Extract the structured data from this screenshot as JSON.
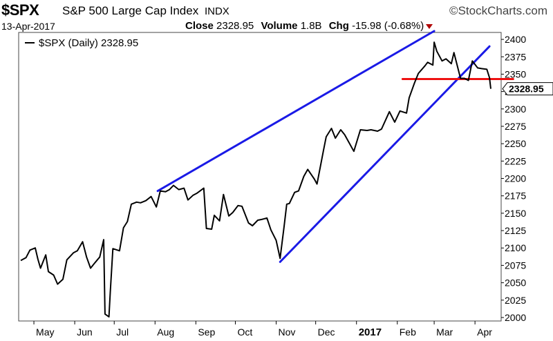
{
  "header": {
    "symbol": "$SPX",
    "name": "S&P 500 Large Cap Index",
    "exchange": "INDX",
    "brand": "©StockCharts.com",
    "date": "13-Apr-2017",
    "close_label": "Close",
    "close_value": "2328.95",
    "volume_label": "Volume",
    "volume_value": "1.8B",
    "chg_label": "Chg",
    "chg_value": "-15.98 (-0.68%)"
  },
  "chart_data": {
    "type": "line",
    "legend": "$SPX (Daily) 2328.95",
    "legend_placement": "top-left",
    "last_value_label": "2328.95",
    "last_value": 2328.95,
    "ylim": [
      1995,
      2410
    ],
    "yticks": [
      2000,
      2025,
      2050,
      2075,
      2100,
      2125,
      2150,
      2175,
      2200,
      2225,
      2250,
      2275,
      2300,
      2325,
      2350,
      2375,
      2400
    ],
    "y_axis_side": "right",
    "x_start": "2016-04-21",
    "x_end": "2017-04-13",
    "months": [
      {
        "label": "May",
        "date": "2016-05-01"
      },
      {
        "label": "Jun",
        "date": "2016-06-01"
      },
      {
        "label": "Jul",
        "date": "2016-07-01"
      },
      {
        "label": "Aug",
        "date": "2016-08-01"
      },
      {
        "label": "Sep",
        "date": "2016-09-01"
      },
      {
        "label": "Oct",
        "date": "2016-10-01"
      },
      {
        "label": "Nov",
        "date": "2016-11-01"
      },
      {
        "label": "Dec",
        "date": "2016-12-01"
      },
      {
        "label": "2017",
        "date": "2017-01-01",
        "bold": true
      },
      {
        "label": "Feb",
        "date": "2017-02-01"
      },
      {
        "label": "Mar",
        "date": "2017-03-01"
      },
      {
        "label": "Apr",
        "date": "2017-04-01"
      }
    ],
    "series": [
      {
        "color": "#000000",
        "points": [
          [
            "2016-04-21",
            2082
          ],
          [
            "2016-04-25",
            2086
          ],
          [
            "2016-04-28",
            2097
          ],
          [
            "2016-05-02",
            2100
          ],
          [
            "2016-05-04",
            2084
          ],
          [
            "2016-05-06",
            2071
          ],
          [
            "2016-05-10",
            2090
          ],
          [
            "2016-05-12",
            2066
          ],
          [
            "2016-05-16",
            2061
          ],
          [
            "2016-05-19",
            2048
          ],
          [
            "2016-05-23",
            2055
          ],
          [
            "2016-05-26",
            2083
          ],
          [
            "2016-05-31",
            2093
          ],
          [
            "2016-06-03",
            2096
          ],
          [
            "2016-06-07",
            2109
          ],
          [
            "2016-06-10",
            2087
          ],
          [
            "2016-06-13",
            2071
          ],
          [
            "2016-06-16",
            2078
          ],
          [
            "2016-06-20",
            2087
          ],
          [
            "2016-06-23",
            2112
          ],
          [
            "2016-06-24",
            2005
          ],
          [
            "2016-06-27",
            2001
          ],
          [
            "2016-06-28",
            2036
          ],
          [
            "2016-06-30",
            2099
          ],
          [
            "2016-07-05",
            2096
          ],
          [
            "2016-07-08",
            2129
          ],
          [
            "2016-07-11",
            2138
          ],
          [
            "2016-07-14",
            2163
          ],
          [
            "2016-07-18",
            2166
          ],
          [
            "2016-07-21",
            2165
          ],
          [
            "2016-07-25",
            2168
          ],
          [
            "2016-07-29",
            2174
          ],
          [
            "2016-08-02",
            2159
          ],
          [
            "2016-08-05",
            2182
          ],
          [
            "2016-08-09",
            2181
          ],
          [
            "2016-08-12",
            2184
          ],
          [
            "2016-08-15",
            2190
          ],
          [
            "2016-08-19",
            2184
          ],
          [
            "2016-08-23",
            2186
          ],
          [
            "2016-08-26",
            2169
          ],
          [
            "2016-08-30",
            2176
          ],
          [
            "2016-09-02",
            2179
          ],
          [
            "2016-09-07",
            2186
          ],
          [
            "2016-09-09",
            2128
          ],
          [
            "2016-09-13",
            2127
          ],
          [
            "2016-09-15",
            2147
          ],
          [
            "2016-09-19",
            2139
          ],
          [
            "2016-09-22",
            2177
          ],
          [
            "2016-09-26",
            2146
          ],
          [
            "2016-09-29",
            2151
          ],
          [
            "2016-10-03",
            2161
          ],
          [
            "2016-10-06",
            2160
          ],
          [
            "2016-10-11",
            2136
          ],
          [
            "2016-10-14",
            2132
          ],
          [
            "2016-10-18",
            2140
          ],
          [
            "2016-10-21",
            2141
          ],
          [
            "2016-10-25",
            2143
          ],
          [
            "2016-10-28",
            2126
          ],
          [
            "2016-11-01",
            2111
          ],
          [
            "2016-11-04",
            2085
          ],
          [
            "2016-11-07",
            2131
          ],
          [
            "2016-11-09",
            2163
          ],
          [
            "2016-11-11",
            2164
          ],
          [
            "2016-11-15",
            2180
          ],
          [
            "2016-11-18",
            2182
          ],
          [
            "2016-11-22",
            2203
          ],
          [
            "2016-11-25",
            2213
          ],
          [
            "2016-11-30",
            2199
          ],
          [
            "2016-12-02",
            2192
          ],
          [
            "2016-12-07",
            2241
          ],
          [
            "2016-12-09",
            2260
          ],
          [
            "2016-12-13",
            2272
          ],
          [
            "2016-12-16",
            2258
          ],
          [
            "2016-12-20",
            2270
          ],
          [
            "2016-12-23",
            2263
          ],
          [
            "2016-12-30",
            2239
          ],
          [
            "2017-01-04",
            2270
          ],
          [
            "2017-01-09",
            2269
          ],
          [
            "2017-01-12",
            2270
          ],
          [
            "2017-01-17",
            2268
          ],
          [
            "2017-01-20",
            2271
          ],
          [
            "2017-01-26",
            2296
          ],
          [
            "2017-01-30",
            2281
          ],
          [
            "2017-02-03",
            2297
          ],
          [
            "2017-02-08",
            2294
          ],
          [
            "2017-02-10",
            2316
          ],
          [
            "2017-02-14",
            2337
          ],
          [
            "2017-02-17",
            2351
          ],
          [
            "2017-02-22",
            2362
          ],
          [
            "2017-02-24",
            2367
          ],
          [
            "2017-02-28",
            2363
          ],
          [
            "2017-03-01",
            2396
          ],
          [
            "2017-03-03",
            2383
          ],
          [
            "2017-03-07",
            2369
          ],
          [
            "2017-03-10",
            2372
          ],
          [
            "2017-03-14",
            2365
          ],
          [
            "2017-03-16",
            2381
          ],
          [
            "2017-03-21",
            2344
          ],
          [
            "2017-03-24",
            2344
          ],
          [
            "2017-03-27",
            2341
          ],
          [
            "2017-03-30",
            2369
          ],
          [
            "2017-04-03",
            2359
          ],
          [
            "2017-04-06",
            2358
          ],
          [
            "2017-04-10",
            2357
          ],
          [
            "2017-04-12",
            2345
          ],
          [
            "2017-04-13",
            2328.95
          ]
        ]
      }
    ],
    "trendlines": [
      {
        "color": "#1a1ae6",
        "from": [
          "2016-08-03",
          2182
        ],
        "to": [
          "2017-03-01",
          2412
        ]
      },
      {
        "color": "#1a1ae6",
        "from": [
          "2016-11-04",
          2080
        ],
        "to": [
          "2017-04-12",
          2390
        ]
      },
      {
        "color": "#ee1111",
        "from": [
          "2017-02-05",
          2343
        ],
        "to": [
          "2017-04-30",
          2343
        ]
      }
    ]
  }
}
